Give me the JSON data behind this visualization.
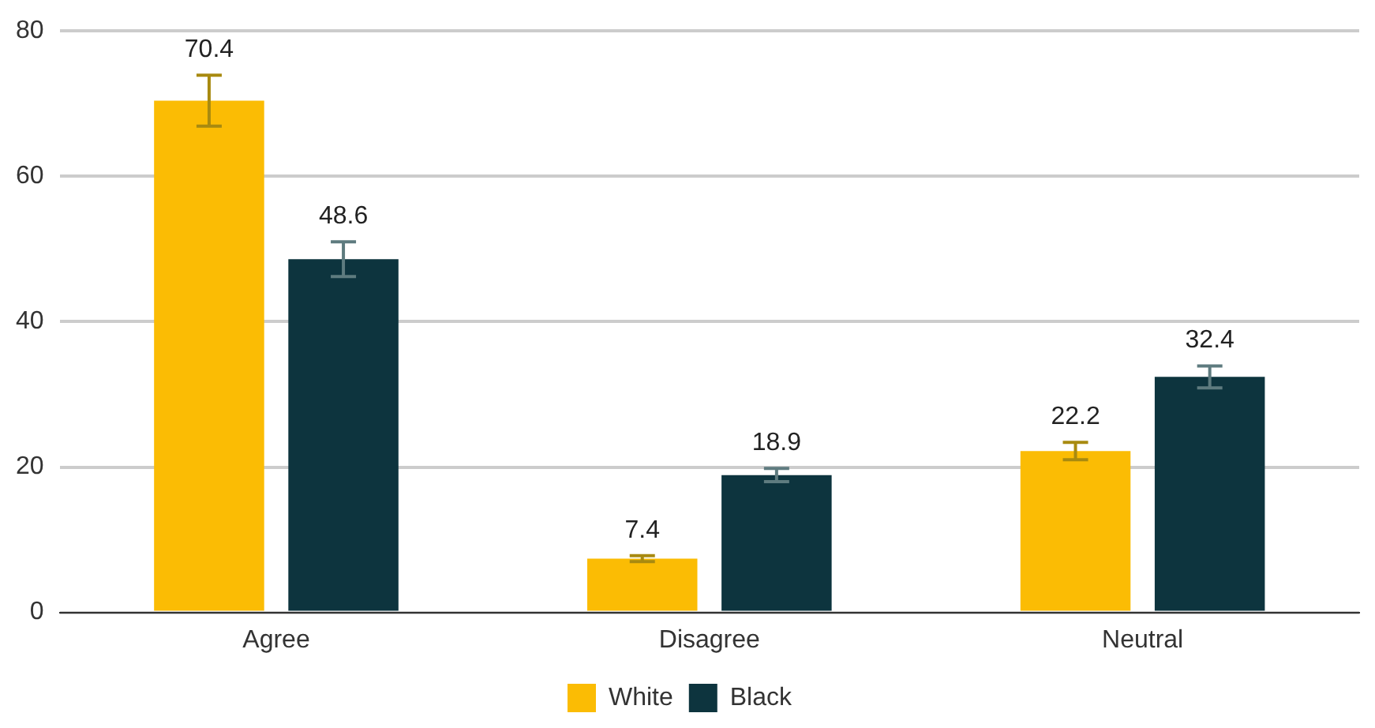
{
  "chart_data": {
    "type": "bar",
    "categories": [
      "Agree",
      "Disagree",
      "Neutral"
    ],
    "series": [
      {
        "name": "White",
        "color": "#fbbc04",
        "values": [
          70.4,
          7.4,
          22.2
        ],
        "errors": [
          3.5,
          0.4,
          1.2
        ]
      },
      {
        "name": "Black",
        "color": "#0d343e",
        "values": [
          48.6,
          18.9,
          32.4
        ],
        "errors": [
          2.4,
          0.9,
          1.5
        ]
      }
    ],
    "ylim": [
      0,
      80
    ],
    "yticks": [
      0,
      20,
      40,
      60,
      80
    ],
    "grid": "y",
    "legend": "bottom",
    "data_labels": true
  }
}
